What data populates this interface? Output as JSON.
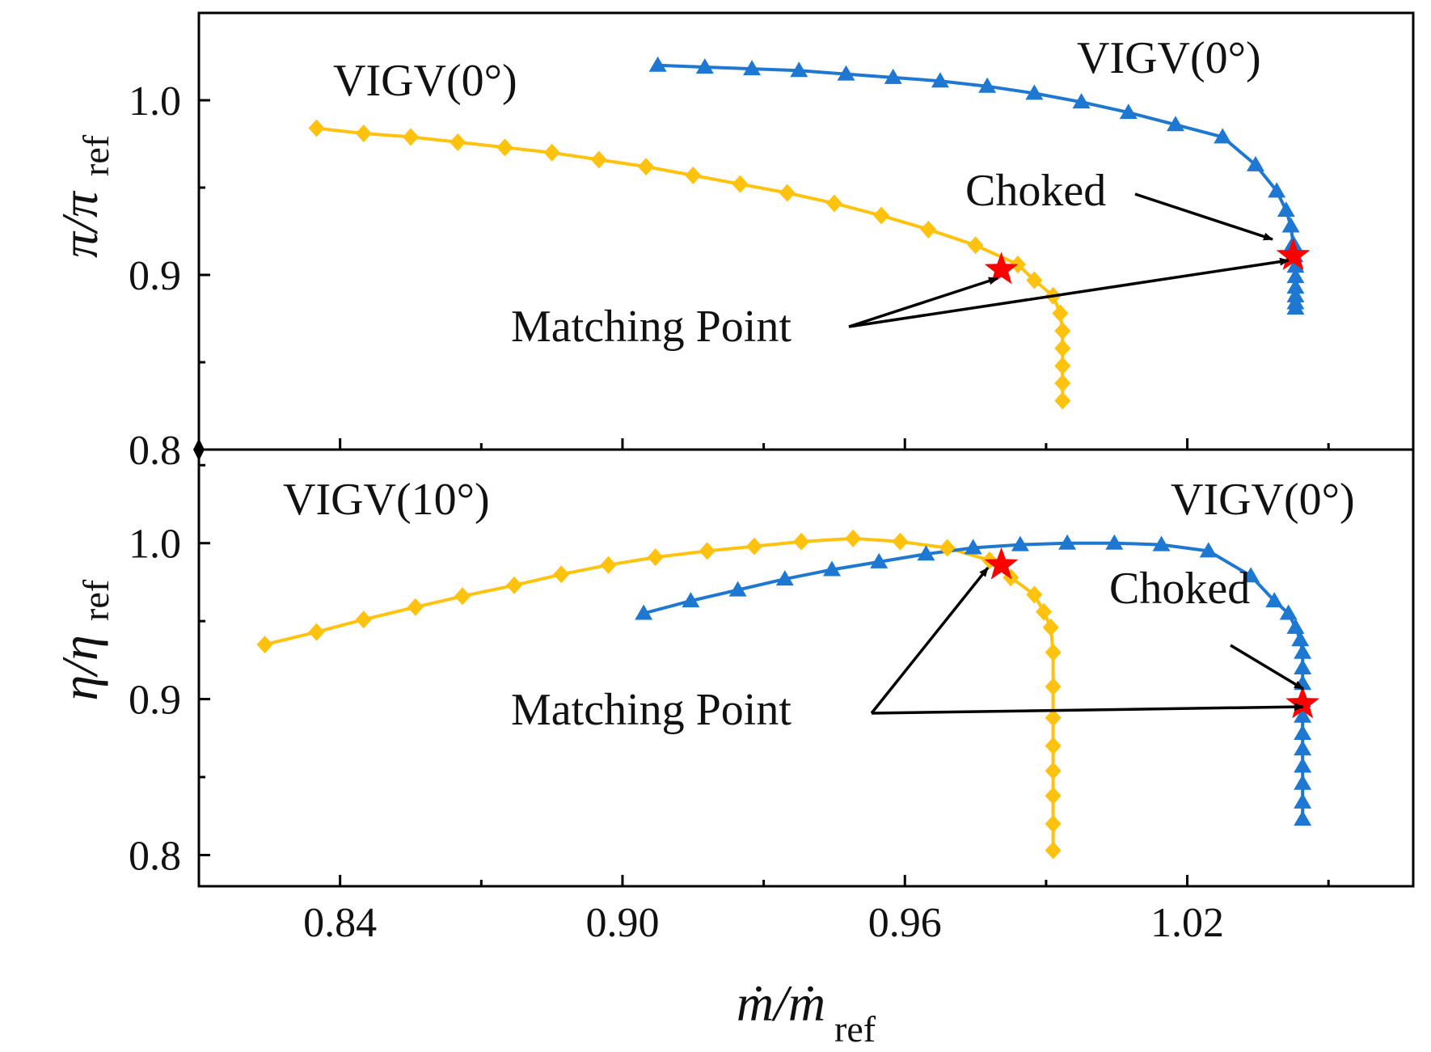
{
  "colors": {
    "series_diamond": "#FFC20E",
    "series_triangle": "#1E78D2",
    "star": "#FF0000",
    "axis": "#000000",
    "arrow": "#000000"
  },
  "chart_data": [
    {
      "type": "line",
      "panel": "top",
      "ylabel": {
        "main": "π/π",
        "sub": "ref"
      },
      "xlim": [
        0.81,
        1.068
      ],
      "ylim": [
        0.8,
        1.05
      ],
      "yticks": [
        "0.8",
        "0.9",
        "1.0"
      ],
      "x_minor_ticks": true,
      "grid": false,
      "series": [
        {
          "marker": "diamond",
          "color": "#FFC20E",
          "x": [
            0.835,
            0.845,
            0.855,
            0.865,
            0.875,
            0.885,
            0.895,
            0.905,
            0.915,
            0.925,
            0.935,
            0.945,
            0.955,
            0.965,
            0.975,
            0.984,
            0.9875,
            0.9915,
            0.993,
            0.9935,
            0.9935,
            0.9935,
            0.9935,
            0.9935
          ],
          "y": [
            0.984,
            0.981,
            0.979,
            0.976,
            0.973,
            0.97,
            0.966,
            0.962,
            0.957,
            0.952,
            0.947,
            0.941,
            0.934,
            0.926,
            0.917,
            0.906,
            0.897,
            0.888,
            0.878,
            0.868,
            0.858,
            0.848,
            0.838,
            0.828
          ]
        },
        {
          "marker": "triangle",
          "color": "#1E78D2",
          "x": [
            0.9075,
            0.9175,
            0.9275,
            0.9375,
            0.9475,
            0.9575,
            0.9675,
            0.9775,
            0.9875,
            0.9975,
            1.0075,
            1.0175,
            1.0275,
            1.0345,
            1.039,
            1.041,
            1.042,
            1.0425,
            1.0428,
            1.043,
            1.043,
            1.043,
            1.043,
            1.043,
            1.043
          ],
          "y": [
            1.02,
            1.019,
            1.018,
            1.017,
            1.015,
            1.013,
            1.011,
            1.008,
            1.004,
            0.999,
            0.993,
            0.986,
            0.979,
            0.963,
            0.948,
            0.937,
            0.928,
            0.918,
            0.911,
            0.905,
            0.899,
            0.893,
            0.888,
            0.884,
            0.881
          ]
        }
      ],
      "matching_points": [
        {
          "x": 0.9805,
          "y": 0.903
        },
        {
          "x": 1.0425,
          "y": 0.911
        }
      ],
      "annotations": {
        "left_title": "VIGV(0°)",
        "right_title": "VIGV(0°)",
        "choked": "Choked",
        "matching": "Matching Point"
      }
    },
    {
      "type": "line",
      "panel": "bottom",
      "ylabel": {
        "main": "η/η",
        "sub": "ref"
      },
      "xlabel": {
        "main": "ṁ/ṁ",
        "sub": "ref"
      },
      "xlim": [
        0.81,
        1.068
      ],
      "ylim": [
        0.78,
        1.06
      ],
      "xticks": [
        "0.84",
        "0.90",
        "0.96",
        "1.02"
      ],
      "yticks": [
        "0.8",
        "0.9",
        "1.0"
      ],
      "grid": false,
      "series": [
        {
          "marker": "diamond",
          "color": "#FFC20E",
          "x": [
            0.824,
            0.835,
            0.845,
            0.856,
            0.866,
            0.877,
            0.887,
            0.897,
            0.907,
            0.918,
            0.928,
            0.938,
            0.949,
            0.959,
            0.969,
            0.978,
            0.9825,
            0.9875,
            0.9895,
            0.991,
            0.9915,
            0.9915,
            0.9915,
            0.9915,
            0.9915,
            0.9915,
            0.9915,
            0.9915
          ],
          "y": [
            0.935,
            0.943,
            0.951,
            0.959,
            0.966,
            0.973,
            0.98,
            0.986,
            0.991,
            0.995,
            0.998,
            1.001,
            1.003,
            1.001,
            0.997,
            0.989,
            0.978,
            0.967,
            0.956,
            0.946,
            0.93,
            0.908,
            0.888,
            0.87,
            0.854,
            0.838,
            0.82,
            0.803
          ]
        },
        {
          "marker": "triangle",
          "color": "#1E78D2",
          "x": [
            0.9045,
            0.9145,
            0.9245,
            0.9345,
            0.9445,
            0.9545,
            0.9645,
            0.9745,
            0.9845,
            0.9945,
            1.0045,
            1.0145,
            1.0245,
            1.0335,
            1.0385,
            1.0415,
            1.043,
            1.044,
            1.0445,
            1.0445,
            1.0445,
            1.0445,
            1.0445,
            1.0445,
            1.0445,
            1.0445,
            1.0445,
            1.0445,
            1.0445
          ],
          "y": [
            0.955,
            0.963,
            0.97,
            0.977,
            0.983,
            0.988,
            0.993,
            0.997,
            0.999,
            1.0,
            1.0,
            0.999,
            0.995,
            0.979,
            0.963,
            0.955,
            0.946,
            0.938,
            0.93,
            0.92,
            0.91,
            0.899,
            0.889,
            0.878,
            0.868,
            0.857,
            0.846,
            0.834,
            0.823
          ]
        }
      ],
      "matching_points": [
        {
          "x": 0.9805,
          "y": 0.986
        },
        {
          "x": 1.0445,
          "y": 0.897
        }
      ],
      "annotations": {
        "left_title": "VIGV(10°)",
        "right_title": "VIGV(0°)",
        "choked": "Choked",
        "matching": "Matching Point"
      }
    }
  ]
}
